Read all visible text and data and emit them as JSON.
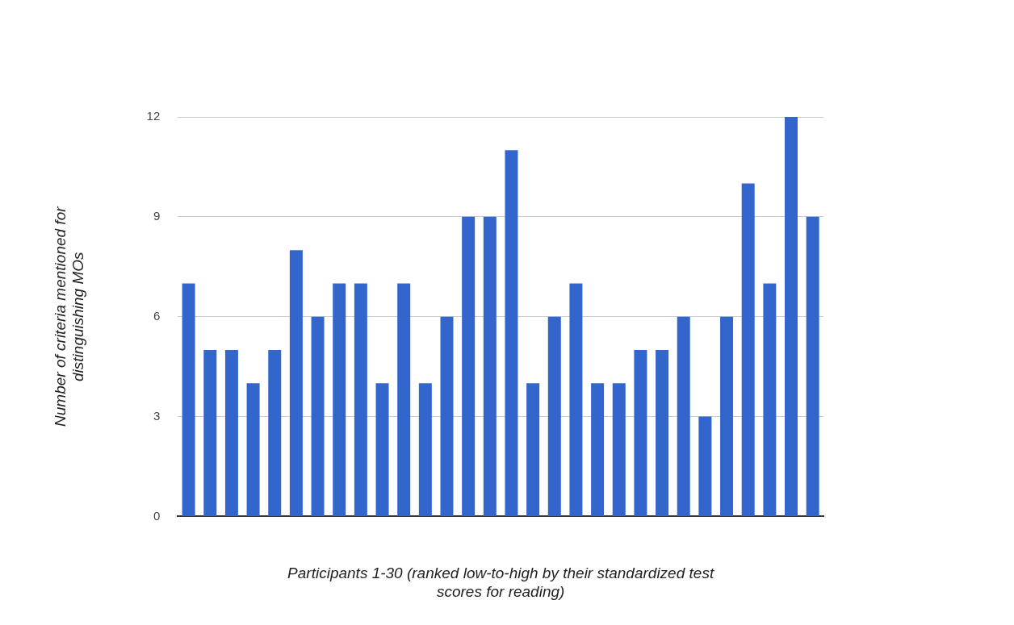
{
  "chart_data": {
    "type": "bar",
    "xlabel": "Participants 1-30 (ranked low-to-high by their standardized test scores for reading)",
    "ylabel": "Number of criteria mentioned for distinguishing MOs",
    "categories": [
      null,
      null,
      null,
      null,
      null,
      null,
      null,
      null,
      null,
      null,
      null,
      null,
      null,
      null,
      null,
      null,
      null,
      null,
      null,
      null,
      null,
      null,
      null,
      null,
      null,
      null,
      null,
      null,
      null,
      null
    ],
    "values": [
      7,
      5,
      5,
      4,
      5,
      8,
      6,
      7,
      7,
      4,
      7,
      4,
      6,
      9,
      9,
      11,
      4,
      6,
      7,
      4,
      4,
      5,
      5,
      6,
      3,
      6,
      10,
      7,
      12,
      9
    ],
    "color": "#3366cc",
    "ylim": [
      0,
      12
    ],
    "yticks": [
      0,
      3,
      6,
      9,
      12
    ],
    "grid": "y",
    "legend": false
  }
}
